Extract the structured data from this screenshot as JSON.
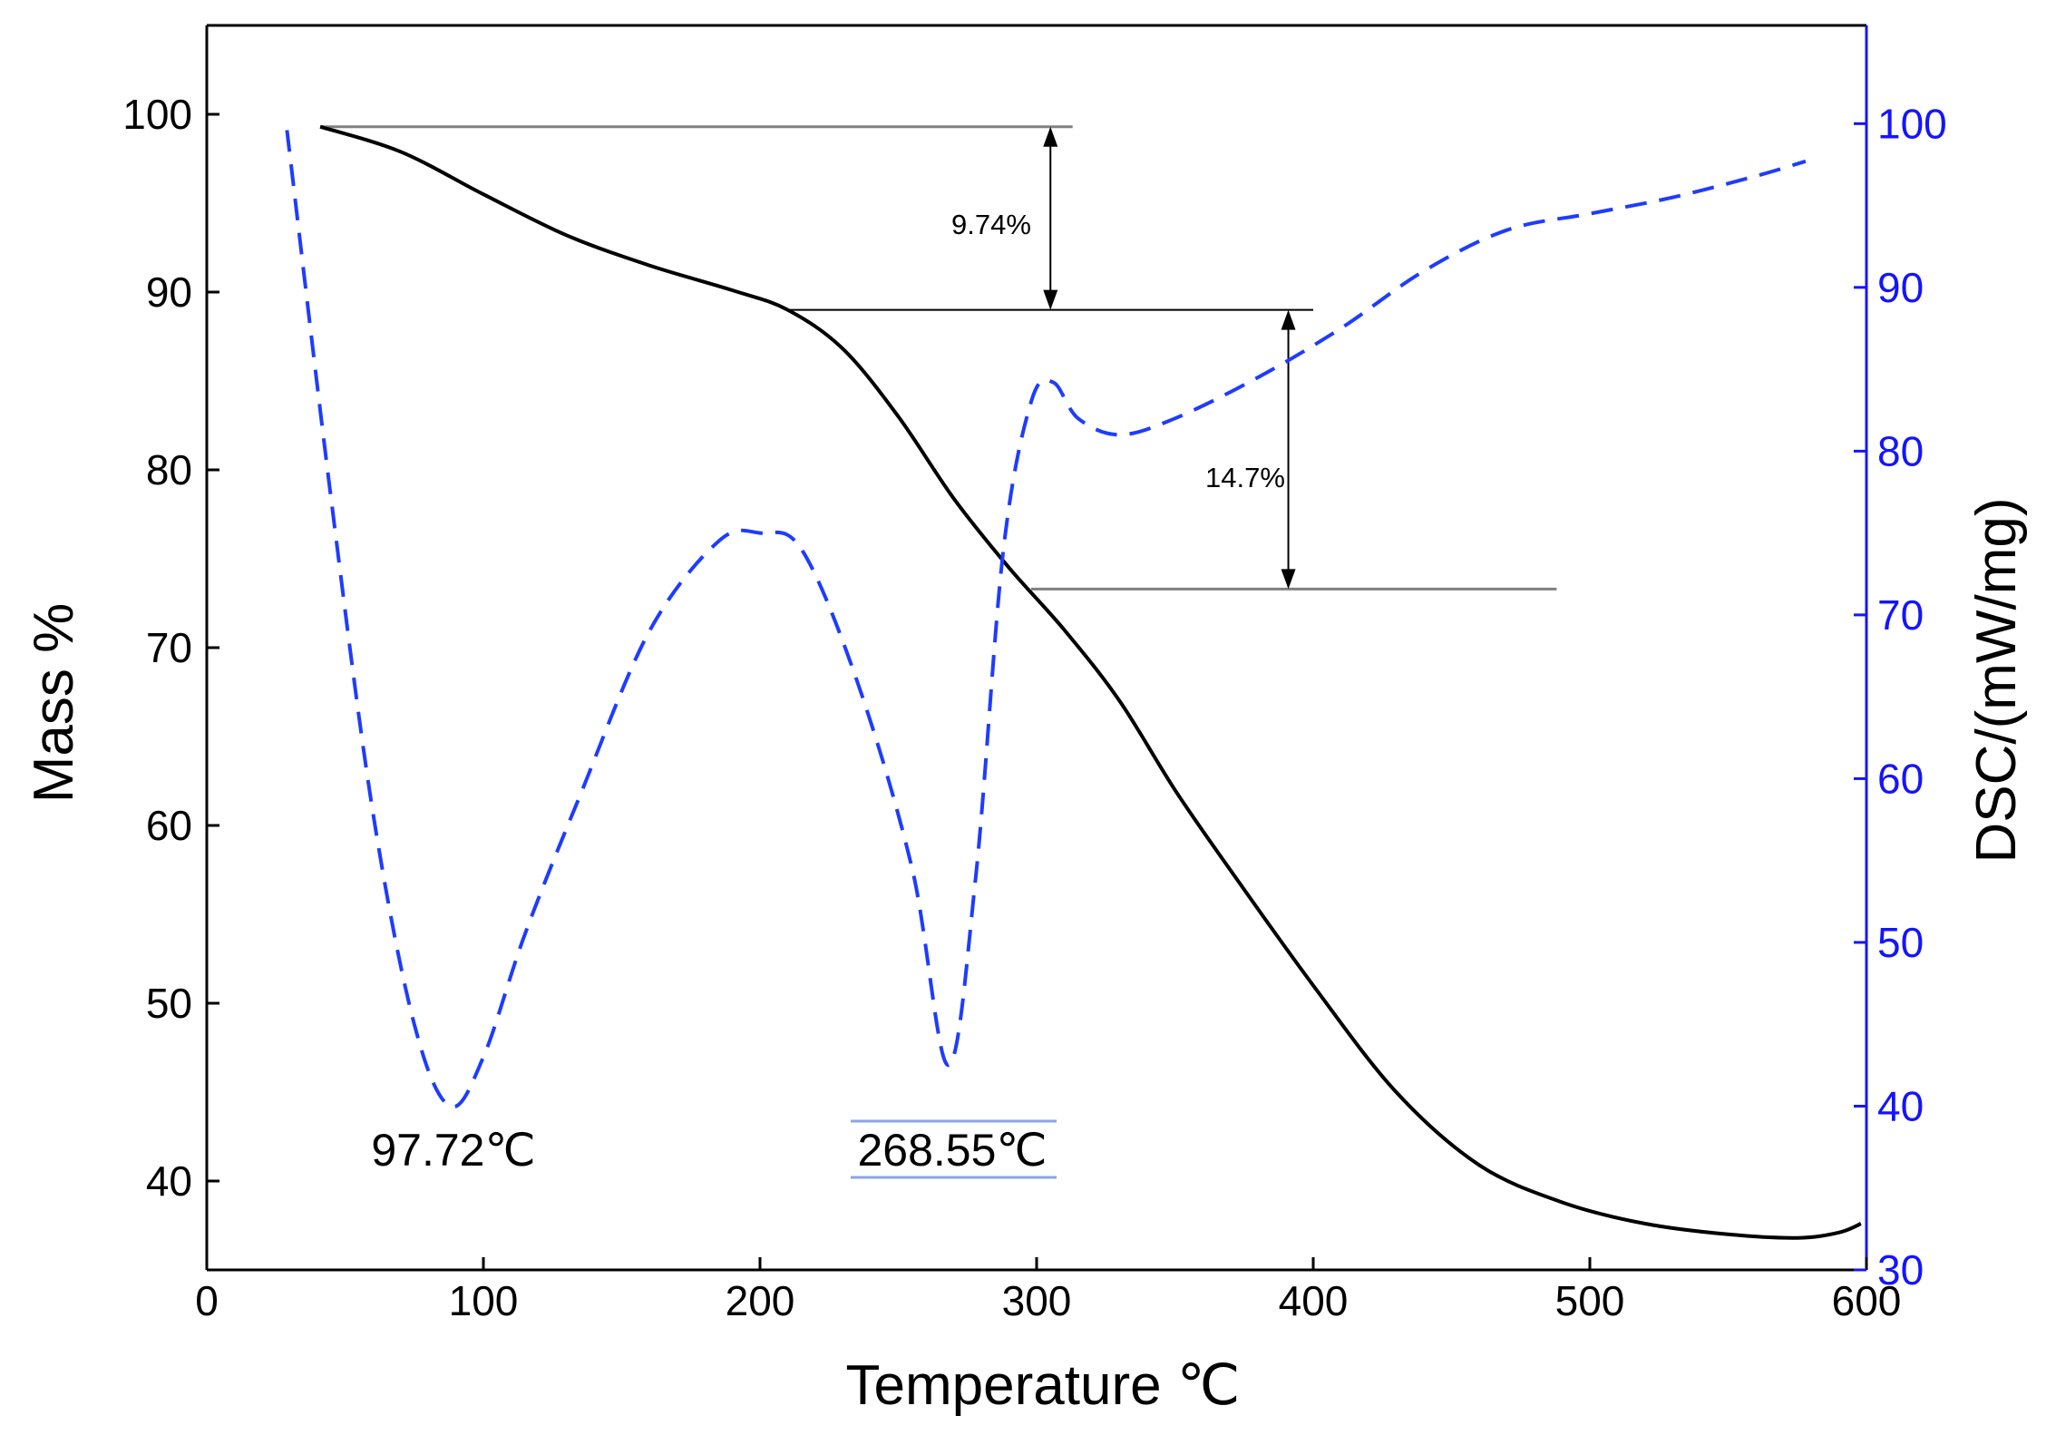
{
  "chart_data": {
    "type": "line",
    "title": "",
    "xlabel": "Temperature ℃",
    "ylabel_left": "Mass %",
    "ylabel_right": "DSC/(mW/mg)",
    "xlim": [
      0,
      600
    ],
    "ylim_left": [
      35,
      105
    ],
    "ylim_right": [
      30,
      106
    ],
    "x_ticks": [
      "0",
      "100",
      "200",
      "300",
      "400",
      "500",
      "600"
    ],
    "y_left_ticks": [
      "40",
      "50",
      "60",
      "70",
      "80",
      "90",
      "100"
    ],
    "y_right_ticks": [
      "30",
      "40",
      "50",
      "60",
      "70",
      "80",
      "90",
      "100"
    ],
    "grid": false,
    "colors": {
      "tg": "#000000",
      "dsc": "#1e3cff",
      "right_axis": "#1414ff",
      "guide": "#808080"
    },
    "series": [
      {
        "name": "TG (Mass %)",
        "axis": "left",
        "style": "solid",
        "x": [
          41,
          70,
          100,
          130,
          160,
          190,
          210,
          230,
          250,
          270,
          290,
          310,
          330,
          350,
          370,
          400,
          430,
          460,
          490,
          520,
          550,
          575,
          590,
          598
        ],
        "y": [
          99.3,
          97.9,
          95.5,
          93.2,
          91.5,
          90.1,
          89.0,
          86.8,
          83.0,
          78.4,
          74.5,
          71.0,
          67.0,
          62.0,
          57.5,
          51.0,
          45.0,
          40.9,
          38.8,
          37.6,
          37.0,
          36.8,
          37.1,
          37.6
        ]
      },
      {
        "name": "DSC (mW/mg)",
        "axis": "right",
        "style": "dashed",
        "x": [
          29,
          45,
          60,
          75,
          88,
          100,
          115,
          135,
          160,
          185,
          200,
          215,
          235,
          255,
          268,
          278,
          288,
          298,
          306,
          315,
          330,
          350,
          380,
          410,
          440,
          470,
          500,
          530,
          560,
          578
        ],
        "y": [
          99.6,
          77.0,
          58.0,
          45.0,
          40.0,
          43.0,
          50.5,
          59.0,
          69.0,
          74.5,
          75.0,
          74.0,
          66.0,
          54.5,
          42.5,
          54.0,
          74.0,
          83.0,
          84.2,
          82.0,
          81.0,
          82.0,
          84.5,
          87.5,
          91.0,
          93.5,
          94.5,
          95.5,
          96.8,
          97.7
        ]
      }
    ],
    "annotations": {
      "mass_loss_1": "9.74%",
      "mass_loss_2": "14.7%",
      "peak_1": "97.72℃",
      "peak_2": "268.55℃"
    }
  }
}
